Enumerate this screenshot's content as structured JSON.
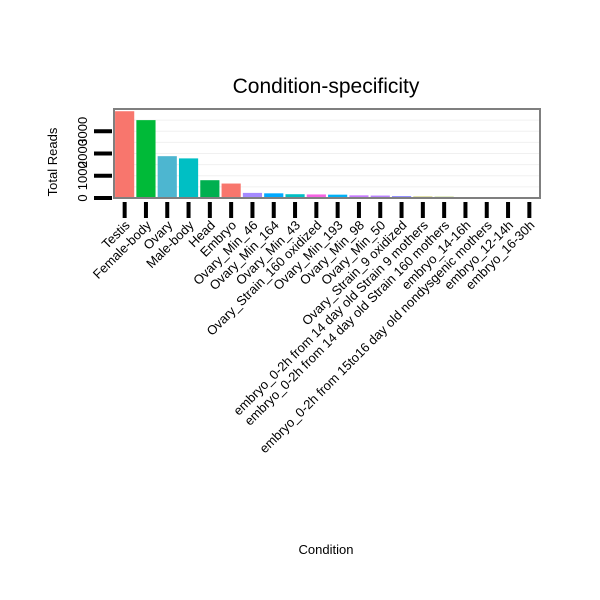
{
  "chart_data": {
    "type": "bar",
    "title": "Condition-specificity",
    "xlabel": "Condition",
    "ylabel": "Total Reads",
    "ylim": [
      0,
      4000
    ],
    "y_ticks": [
      0,
      1000,
      2000,
      3000
    ],
    "y_tick_labels": [
      "0",
      "1000",
      "2000",
      "3000"
    ],
    "grid": true,
    "categories": [
      "Testis",
      "Female-body",
      "Ovary",
      "Male-body",
      "Head",
      "Embryo",
      "Ovary_Min_46",
      "Ovary_Min_164",
      "Ovary_Min_43",
      "Ovary_Strain_160 oxidized",
      "Ovary_Min_193",
      "Ovary_Min_98",
      "Ovary_Min_50",
      "Ovary_Strain_9 oxidized",
      "embryo_0-2h from 14 day old Strain 9 mothers",
      "embryo_0-2h from 14 day old Strain 160 mothers",
      "embryo_14-16h",
      "embryo_0-2h from 15to16 day old nondysgenic mothers",
      "embryo_12-14h",
      "embryo_16-30h"
    ],
    "values": [
      3900,
      3500,
      1880,
      1780,
      800,
      650,
      230,
      210,
      170,
      160,
      150,
      120,
      110,
      90,
      60,
      55,
      45,
      20,
      10,
      5
    ],
    "colors": [
      "#F8766D",
      "#00BA38",
      "#4DB6D0",
      "#00BFC4",
      "#00B050",
      "#F8766D",
      "#A58AFF",
      "#00A9FF",
      "#00BFC4",
      "#F564E3",
      "#00B0F6",
      "#C77CFF",
      "#B983FF",
      "#9590FF",
      "#A3A500",
      "#7CAE00",
      "#D89000",
      "#E76BF3",
      "#39B600",
      "#00C19F"
    ]
  }
}
